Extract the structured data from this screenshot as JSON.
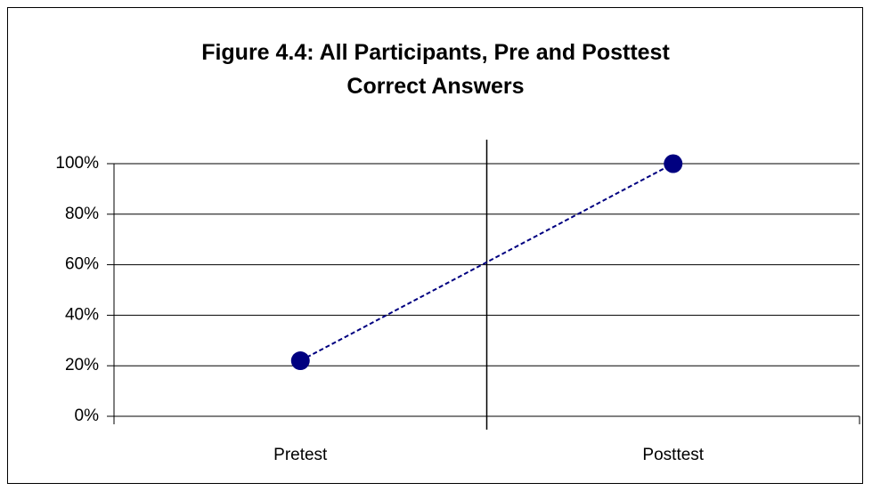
{
  "chart_data": {
    "type": "line",
    "title": "Figure 4.4: All Participants, Pre and Posttest Correct Answers",
    "categories": [
      "Pretest",
      "Posttest"
    ],
    "series": [
      {
        "name": "Correct Answers",
        "color": "#000080",
        "values": [
          22,
          100
        ]
      }
    ],
    "ylim": [
      0,
      100
    ],
    "yticks": [
      {
        "value": 0,
        "label": "0%"
      },
      {
        "value": 20,
        "label": "20%"
      },
      {
        "value": 40,
        "label": "40%"
      },
      {
        "value": 60,
        "label": "60%"
      },
      {
        "value": 80,
        "label": "80%"
      },
      {
        "value": 100,
        "label": "100%"
      }
    ],
    "grid": true
  }
}
